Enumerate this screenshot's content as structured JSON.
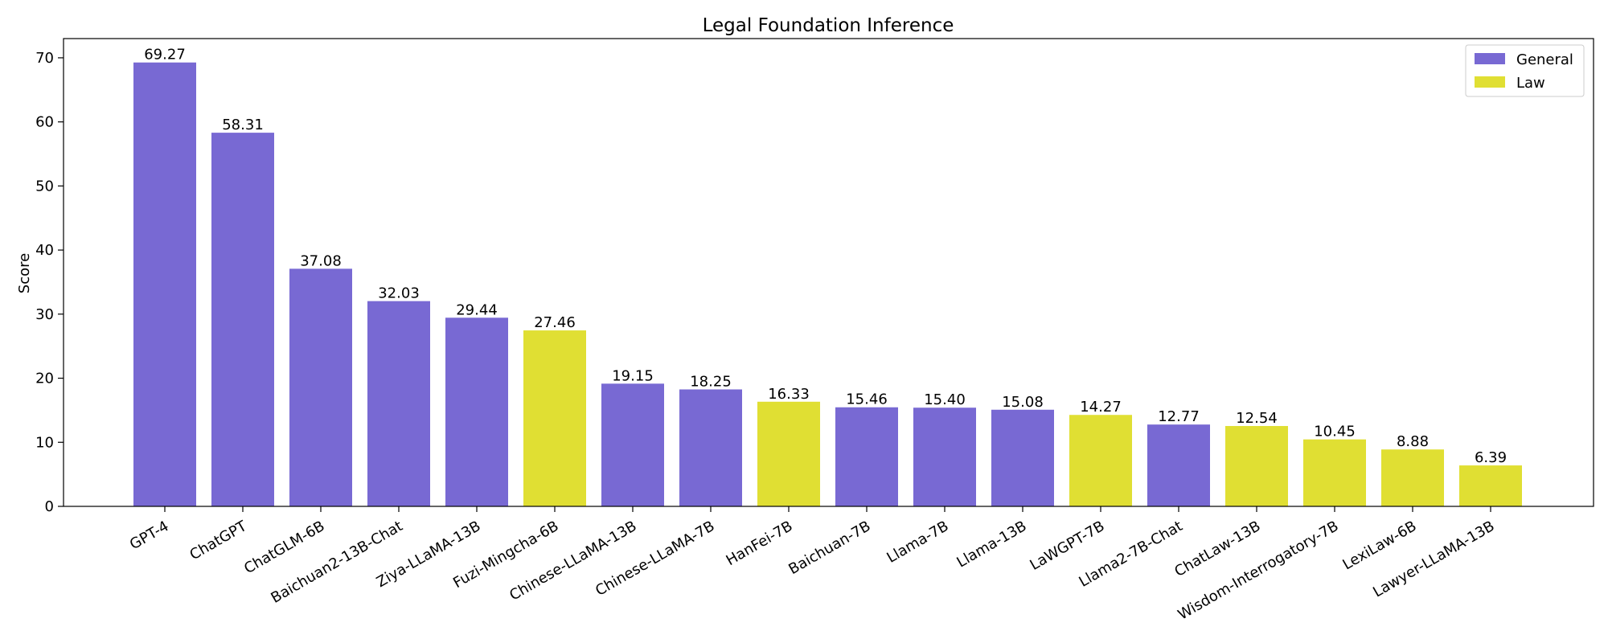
{
  "chart_data": {
    "type": "bar",
    "title": "Legal Foundation Inference",
    "xlabel": "",
    "ylabel": "Score",
    "ylim": [
      0,
      73
    ],
    "yticks": [
      0,
      10,
      20,
      30,
      40,
      50,
      60,
      70
    ],
    "grid": false,
    "legend_position": "top-right",
    "colors": {
      "General": "#7869d3",
      "Law": "#e0df33"
    },
    "legend": [
      "General",
      "Law"
    ],
    "categories": [
      "GPT-4",
      "ChatGPT",
      "ChatGLM-6B",
      "Baichuan2-13B-Chat",
      "Ziya-LLaMA-13B",
      "Fuzi-Mingcha-6B",
      "Chinese-LLaMA-13B",
      "Chinese-LLaMA-7B",
      "HanFei-7B",
      "Baichuan-7B",
      "Llama-7B",
      "Llama-13B",
      "LaWGPT-7B",
      "Llama2-7B-Chat",
      "ChatLaw-13B",
      "Wisdom-Interrogatory-7B",
      "LexiLaw-6B",
      "Lawyer-LLaMA-13B"
    ],
    "values": [
      69.27,
      58.31,
      37.08,
      32.03,
      29.44,
      27.46,
      19.15,
      18.25,
      16.33,
      15.46,
      15.4,
      15.08,
      14.27,
      12.77,
      12.54,
      10.45,
      8.88,
      6.39
    ],
    "value_labels": [
      "69.27",
      "58.31",
      "37.08",
      "32.03",
      "29.44",
      "27.46",
      "19.15",
      "18.25",
      "16.33",
      "15.46",
      "15.40",
      "15.08",
      "14.27",
      "12.77",
      "12.54",
      "10.45",
      "8.88",
      "6.39"
    ],
    "groups": [
      "General",
      "General",
      "General",
      "General",
      "General",
      "Law",
      "General",
      "General",
      "Law",
      "General",
      "General",
      "General",
      "Law",
      "General",
      "Law",
      "Law",
      "Law",
      "Law"
    ]
  }
}
